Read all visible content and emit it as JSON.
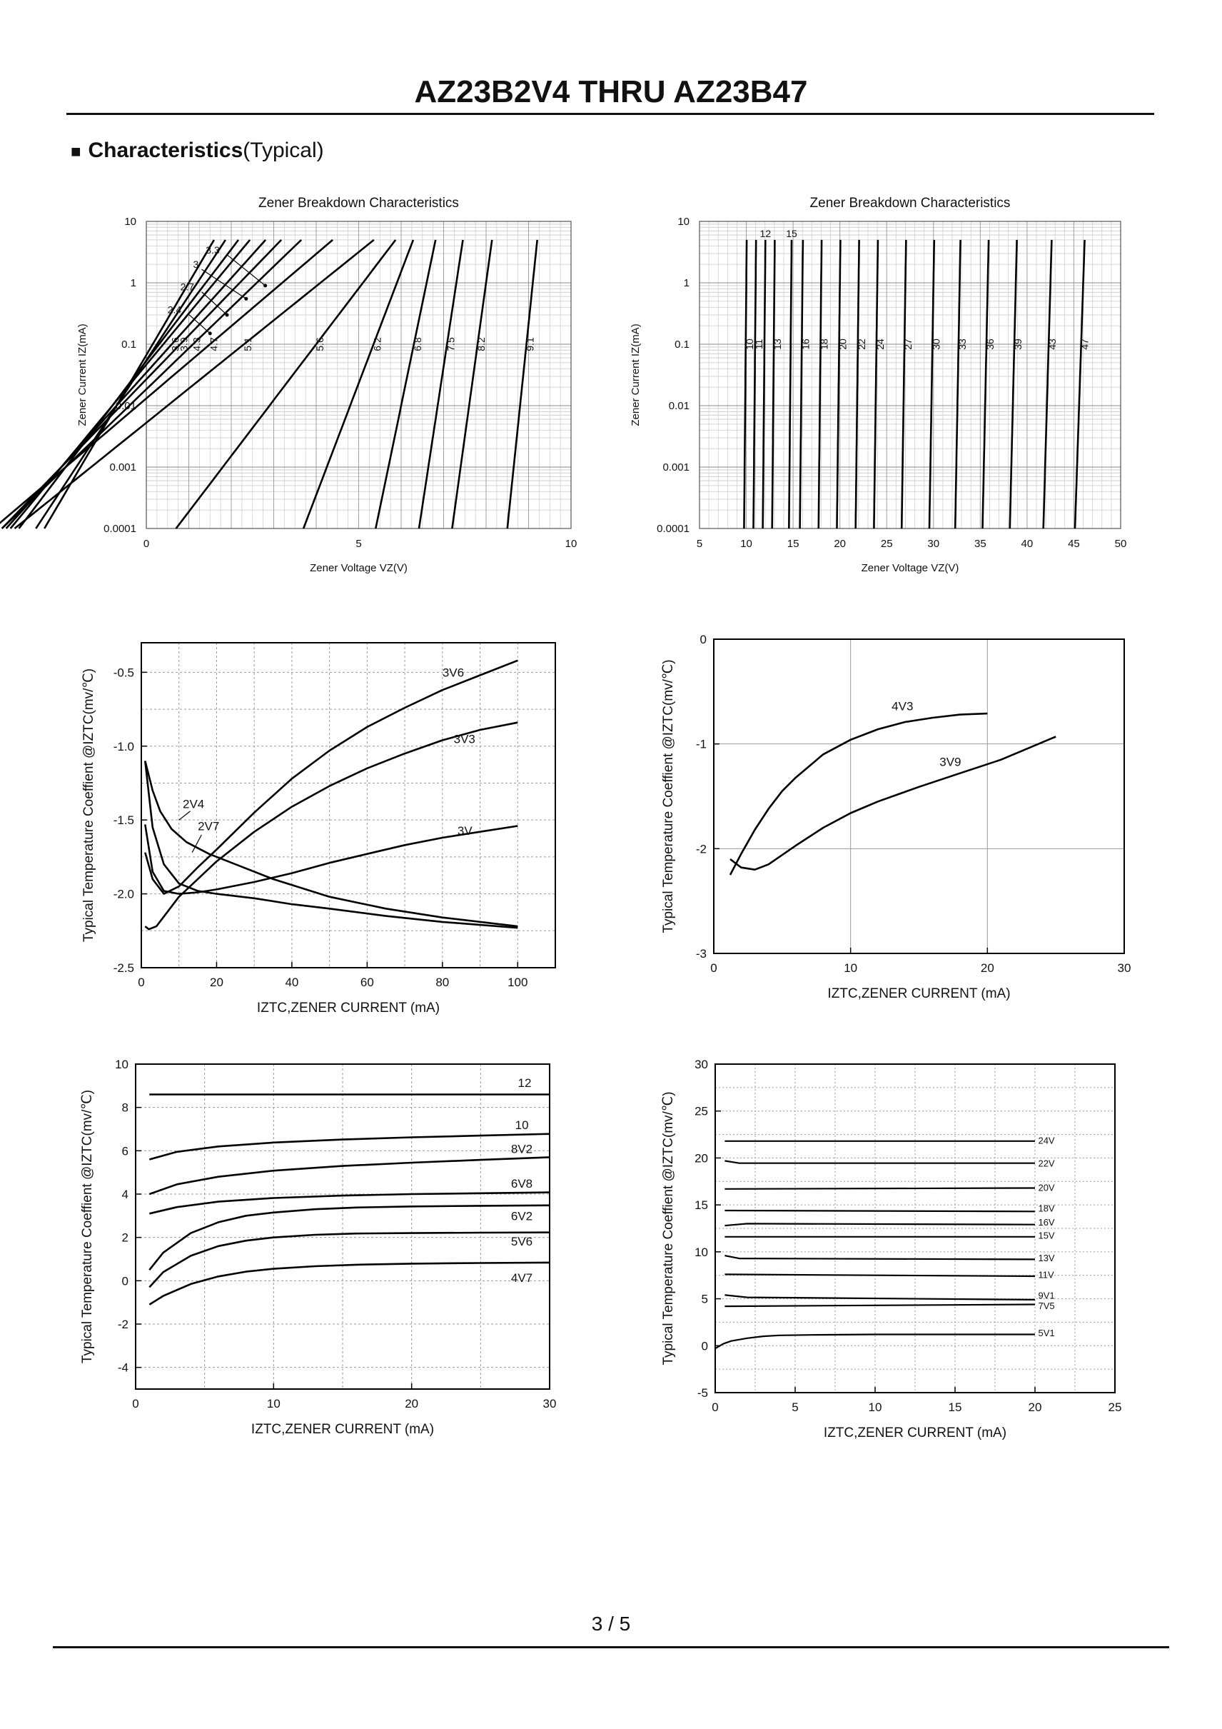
{
  "document": {
    "title": "AZ23B2V4 THRU AZ23B47",
    "page": "3 / 5"
  },
  "section": {
    "bullet": "■",
    "title_bold": "Characteristics",
    "title_rest": "(Typical)"
  },
  "chart_data": [
    {
      "type": "line",
      "title": "Zener Breakdown Characteristics",
      "xlabel": "Zener Voltage    VZ(V)",
      "ylabel": "Zener Current   IZ(mA)",
      "xlim": [
        0,
        10
      ],
      "ylim": [
        0.0001,
        10
      ],
      "yscale": "log",
      "xticks": [
        "0",
        "5",
        "10"
      ],
      "yticks": [
        "0.0001",
        "0.001",
        "0.01",
        "0.1",
        "1",
        "10"
      ],
      "series": [
        {
          "name": "2.4",
          "vz": 1.0,
          "k": 0.85
        },
        {
          "name": "2.7",
          "vz": 1.2,
          "k": 0.95
        },
        {
          "name": "3",
          "vz": 1.4,
          "k": 1.1
        },
        {
          "name": "3.3",
          "vz": 1.6,
          "k": 1.2
        },
        {
          "name": "3.6",
          "vz": 1.9,
          "k": 1.3
        },
        {
          "name": "3.9",
          "vz": 2.2,
          "k": 1.4
        },
        {
          "name": "4.3",
          "vz": 2.6,
          "k": 1.5
        },
        {
          "name": "4.7",
          "vz": 3.2,
          "k": 1.7
        },
        {
          "name": "5.1",
          "vz": 4.1,
          "k": 1.8
        },
        {
          "name": "5.6",
          "vz": 5.1,
          "k": 1.1
        },
        {
          "name": "6.2",
          "vz": 5.9,
          "k": 0.55
        },
        {
          "name": "6.8",
          "vz": 6.6,
          "k": 0.3
        },
        {
          "name": "7.5",
          "vz": 7.3,
          "k": 0.22
        },
        {
          "name": "8.2",
          "vz": 8.0,
          "k": 0.2
        },
        {
          "name": "9.1",
          "vz": 9.1,
          "k": 0.15
        }
      ],
      "pointer_labels": [
        "3.3",
        "3",
        "2.7",
        "2.4"
      ]
    },
    {
      "type": "line",
      "title": "Zener Breakdown Characteristics",
      "xlabel": "Zener Voltage    VZ(V)",
      "ylabel": "Zener Current   IZ(mA)",
      "xlim": [
        5,
        50
      ],
      "ylim": [
        0.0001,
        10
      ],
      "yscale": "log",
      "xticks": [
        "5",
        "10",
        "15",
        "20",
        "25",
        "30",
        "35",
        "40",
        "45",
        "50"
      ],
      "yticks": [
        "0.0001",
        "0.001",
        "0.01",
        "0.1",
        "1",
        "10"
      ],
      "series": [
        {
          "name": "10",
          "vz": 10.0,
          "k": 0.06
        },
        {
          "name": "11",
          "vz": 11.0,
          "k": 0.06
        },
        {
          "name": "12",
          "vz": 12.0,
          "k": 0.06
        },
        {
          "name": "13",
          "vz": 13.0,
          "k": 0.06
        },
        {
          "name": "15",
          "vz": 14.8,
          "k": 0.06
        },
        {
          "name": "16",
          "vz": 16.0,
          "k": 0.07
        },
        {
          "name": "18",
          "vz": 18.0,
          "k": 0.07
        },
        {
          "name": "20",
          "vz": 20.0,
          "k": 0.08
        },
        {
          "name": "22",
          "vz": 22.0,
          "k": 0.08
        },
        {
          "name": "24",
          "vz": 24.0,
          "k": 0.09
        },
        {
          "name": "27",
          "vz": 27.0,
          "k": 0.1
        },
        {
          "name": "30",
          "vz": 30.0,
          "k": 0.11
        },
        {
          "name": "33",
          "vz": 32.8,
          "k": 0.12
        },
        {
          "name": "36",
          "vz": 35.8,
          "k": 0.14
        },
        {
          "name": "39",
          "vz": 38.8,
          "k": 0.16
        },
        {
          "name": "43",
          "vz": 42.5,
          "k": 0.19
        },
        {
          "name": "47",
          "vz": 46.0,
          "k": 0.22
        }
      ],
      "top_labels": [
        "12",
        "15"
      ]
    },
    {
      "type": "line",
      "xlabel": "IZTC,ZENER CURRENT (mA)",
      "ylabel": "Typical Temperature Coeffient @IZTC(mv/℃)",
      "xlim": [
        0,
        110
      ],
      "ylim": [
        -2.5,
        -0.3
      ],
      "xticks": [
        "0",
        "20",
        "40",
        "60",
        "80",
        "100"
      ],
      "yticks": [
        "-2.5",
        "-2.0",
        "-1.5",
        "-1.0",
        "-0.5"
      ],
      "series": [
        {
          "name": "3V6",
          "x": [
            1,
            3,
            6,
            10,
            15,
            20,
            30,
            40,
            50,
            60,
            70,
            80,
            90,
            100
          ],
          "y": [
            -1.72,
            -1.9,
            -2.0,
            -1.95,
            -1.82,
            -1.7,
            -1.45,
            -1.22,
            -1.03,
            -0.87,
            -0.74,
            -0.62,
            -0.52,
            -0.42
          ]
        },
        {
          "name": "3V3",
          "x": [
            1,
            2,
            4,
            7,
            10,
            15,
            20,
            30,
            40,
            50,
            60,
            70,
            80,
            90,
            100
          ],
          "y": [
            -2.22,
            -2.24,
            -2.22,
            -2.12,
            -2.02,
            -1.9,
            -1.78,
            -1.58,
            -1.41,
            -1.27,
            -1.15,
            -1.05,
            -0.96,
            -0.89,
            -0.84
          ]
        },
        {
          "name": "3V",
          "x": [
            1,
            3,
            6,
            10,
            15,
            20,
            30,
            40,
            50,
            60,
            70,
            80,
            90,
            100
          ],
          "y": [
            -1.53,
            -1.85,
            -1.98,
            -2.0,
            -1.99,
            -1.97,
            -1.92,
            -1.86,
            -1.79,
            -1.73,
            -1.67,
            -1.62,
            -1.58,
            -1.54
          ]
        },
        {
          "name": "2V4",
          "x": [
            1,
            3,
            5,
            8,
            12,
            18,
            25,
            35,
            50,
            65,
            80,
            100
          ],
          "y": [
            -1.1,
            -1.3,
            -1.44,
            -1.56,
            -1.65,
            -1.73,
            -1.8,
            -1.9,
            -2.02,
            -2.1,
            -2.16,
            -2.22
          ]
        },
        {
          "name": "2V7",
          "x": [
            1,
            3,
            6,
            10,
            15,
            20,
            30,
            40,
            50,
            65,
            80,
            100
          ],
          "y": [
            -1.1,
            -1.55,
            -1.8,
            -1.93,
            -1.98,
            -2.0,
            -2.03,
            -2.07,
            -2.1,
            -2.15,
            -2.19,
            -2.23
          ]
        }
      ]
    },
    {
      "type": "line",
      "xlabel": "IZTC,ZENER CURRENT (mA)",
      "ylabel": "Typical Temperature Coeffient @IZTC(mv/℃)",
      "xlim": [
        0,
        30
      ],
      "ylim": [
        -3,
        0
      ],
      "xticks": [
        "0",
        "10",
        "20",
        "30"
      ],
      "yticks": [
        "-3",
        "-2",
        "-1",
        "0"
      ],
      "series": [
        {
          "name": "4V3",
          "x": [
            1.2,
            2,
            3,
            4,
            5,
            6,
            8,
            10,
            12,
            14,
            16,
            18,
            20
          ],
          "y": [
            -2.25,
            -2.05,
            -1.82,
            -1.62,
            -1.45,
            -1.32,
            -1.1,
            -0.96,
            -0.86,
            -0.79,
            -0.75,
            -0.72,
            -0.71
          ]
        },
        {
          "name": "3V9",
          "x": [
            1.2,
            2,
            3,
            4,
            6,
            8,
            10,
            12,
            15,
            18,
            21,
            25
          ],
          "y": [
            -2.1,
            -2.18,
            -2.2,
            -2.15,
            -1.97,
            -1.8,
            -1.66,
            -1.55,
            -1.41,
            -1.28,
            -1.15,
            -0.93
          ]
        }
      ]
    },
    {
      "type": "line",
      "xlabel": "IZTC,ZENER CURRENT (mA)",
      "ylabel": "Typical Temperature Coeffient @IZTC(mv/℃)",
      "xlim": [
        0,
        30
      ],
      "ylim": [
        -5,
        10
      ],
      "xticks": [
        "0",
        "10",
        "20",
        "30"
      ],
      "yticks": [
        "-4",
        "-2",
        "0",
        "2",
        "4",
        "6",
        "8",
        "10"
      ],
      "series": [
        {
          "name": "12",
          "x": [
            1,
            30
          ],
          "y": [
            8.6,
            8.6
          ]
        },
        {
          "name": "10",
          "x": [
            1,
            3,
            6,
            10,
            15,
            20,
            25,
            30
          ],
          "y": [
            5.6,
            5.95,
            6.2,
            6.38,
            6.52,
            6.62,
            6.7,
            6.78
          ]
        },
        {
          "name": "8V2",
          "x": [
            1,
            3,
            6,
            10,
            15,
            20,
            25,
            30
          ],
          "y": [
            4.0,
            4.45,
            4.8,
            5.08,
            5.3,
            5.45,
            5.58,
            5.7
          ]
        },
        {
          "name": "6V8",
          "x": [
            1,
            3,
            6,
            10,
            15,
            20,
            25,
            30
          ],
          "y": [
            3.1,
            3.4,
            3.65,
            3.82,
            3.93,
            4.0,
            4.04,
            4.08
          ]
        },
        {
          "name": "6V2",
          "x": [
            1,
            2,
            4,
            6,
            8,
            10,
            13,
            16,
            20,
            25,
            30
          ],
          "y": [
            0.5,
            1.3,
            2.2,
            2.7,
            3.0,
            3.15,
            3.3,
            3.38,
            3.43,
            3.46,
            3.48
          ]
        },
        {
          "name": "5V6",
          "x": [
            1,
            2,
            4,
            6,
            8,
            10,
            13,
            16,
            20,
            25,
            30
          ],
          "y": [
            -0.3,
            0.4,
            1.15,
            1.6,
            1.85,
            2.0,
            2.12,
            2.18,
            2.2,
            2.22,
            2.23
          ]
        },
        {
          "name": "4V7",
          "x": [
            1,
            2,
            4,
            6,
            8,
            10,
            13,
            16,
            20,
            25,
            30
          ],
          "y": [
            -1.1,
            -0.7,
            -0.15,
            0.2,
            0.42,
            0.55,
            0.67,
            0.74,
            0.79,
            0.82,
            0.84
          ]
        }
      ]
    },
    {
      "type": "line",
      "xlabel": "IZTC,ZENER CURRENT (mA)",
      "ylabel": "Typical Temperature Coeffient @IZTC(mv/℃)",
      "xlim": [
        0,
        25
      ],
      "ylim": [
        -5,
        30
      ],
      "xticks": [
        "0",
        "5",
        "10",
        "15",
        "20",
        "25"
      ],
      "yticks": [
        "-5",
        "0",
        "5",
        "10",
        "15",
        "20",
        "25",
        "30"
      ],
      "series": [
        {
          "name": "24V",
          "x": [
            0.6,
            20
          ],
          "y": [
            21.8,
            21.8
          ]
        },
        {
          "name": "22V",
          "x": [
            0.6,
            1.5,
            20
          ],
          "y": [
            19.7,
            19.45,
            19.45
          ]
        },
        {
          "name": "20V",
          "x": [
            0.6,
            20
          ],
          "y": [
            16.7,
            16.8
          ]
        },
        {
          "name": "18V",
          "x": [
            0.6,
            20
          ],
          "y": [
            14.4,
            14.3
          ]
        },
        {
          "name": "16V",
          "x": [
            0.6,
            2,
            20
          ],
          "y": [
            12.8,
            13.0,
            12.9
          ]
        },
        {
          "name": "15V",
          "x": [
            0.6,
            20
          ],
          "y": [
            11.6,
            11.6
          ]
        },
        {
          "name": "13V",
          "x": [
            0.6,
            1.5,
            20
          ],
          "y": [
            9.6,
            9.3,
            9.2
          ]
        },
        {
          "name": "11V",
          "x": [
            0.6,
            20
          ],
          "y": [
            7.6,
            7.4
          ]
        },
        {
          "name": "9V1",
          "x": [
            0.6,
            2,
            20
          ],
          "y": [
            5.4,
            5.15,
            4.9
          ]
        },
        {
          "name": "7V5",
          "x": [
            0.6,
            20
          ],
          "y": [
            4.2,
            4.4
          ]
        },
        {
          "name": "5V1",
          "x": [
            0,
            0.5,
            1,
            2,
            3,
            4,
            6,
            10,
            15,
            20
          ],
          "y": [
            -0.3,
            0.2,
            0.5,
            0.8,
            1.0,
            1.1,
            1.15,
            1.2,
            1.2,
            1.2
          ]
        }
      ]
    }
  ]
}
